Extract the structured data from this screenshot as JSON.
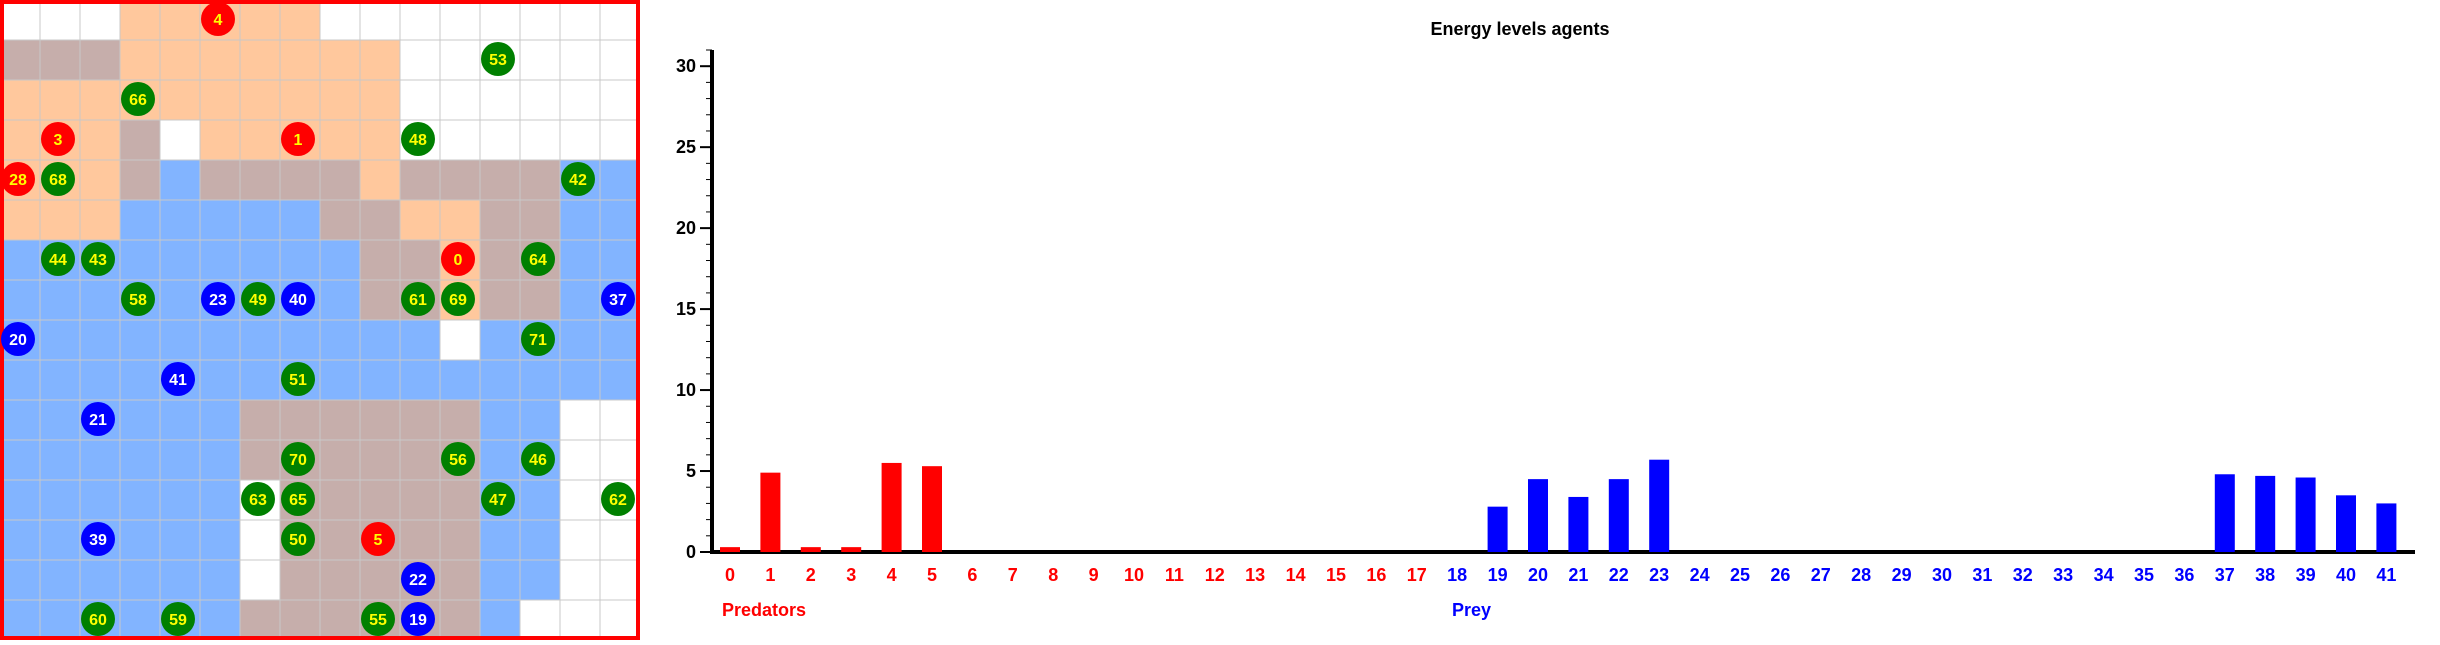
{
  "grid": {
    "cols": 16,
    "rows": 16,
    "orange": "#ff9a4d",
    "blue": "#4d94ff",
    "overlap": "#b89a96",
    "cell_colors": [
      "WWWOOOOOWWWWWWWW",
      "XXXOOOOOOOWWWWWW",
      "OOOOOOOOOOWWWWWW",
      "OOOXWOOOOOWWWWWW",
      "OOOXBXXXXOXXXXBB",
      "OOOBBBBBXXOOXXBB",
      "BBBBBBBBBXXOXXBB",
      "BBBBBBBBBXXOXXBB",
      "BBBBBBBBBBBWBBBB",
      "BBBBBBBBBBBBBBBB",
      "BBBBBBXXXXXXBBWW",
      "BBBBBBXXXXXXBBWW",
      "BBBBBBWXXXXXBBWW",
      "BBBBBBWXXXXXBBWW",
      "BBBBBBWXXXXXBBWW",
      "BBBBBBXXXXXXBWWW"
    ],
    "agents": [
      {
        "id": "4",
        "kind": "predator",
        "col": 5,
        "row": 0
      },
      {
        "id": "53",
        "kind": "grass",
        "col": 12,
        "row": 1
      },
      {
        "id": "66",
        "kind": "grass",
        "col": 3,
        "row": 2
      },
      {
        "id": "3",
        "kind": "predator",
        "col": 1,
        "row": 3
      },
      {
        "id": "1",
        "kind": "predator",
        "col": 7,
        "row": 3
      },
      {
        "id": "48",
        "kind": "grass",
        "col": 10,
        "row": 3
      },
      {
        "id": "28",
        "kind": "predator",
        "col": 0,
        "row": 4
      },
      {
        "id": "68",
        "kind": "grass",
        "col": 1,
        "row": 4
      },
      {
        "id": "42",
        "kind": "grass",
        "col": 14,
        "row": 4
      },
      {
        "id": "44",
        "kind": "grass",
        "col": 1,
        "row": 6
      },
      {
        "id": "43",
        "kind": "grass",
        "col": 2,
        "row": 6
      },
      {
        "id": "0",
        "kind": "predator",
        "col": 11,
        "row": 6
      },
      {
        "id": "64",
        "kind": "grass",
        "col": 13,
        "row": 6
      },
      {
        "id": "58",
        "kind": "grass",
        "col": 3,
        "row": 7
      },
      {
        "id": "23",
        "kind": "prey",
        "col": 5,
        "row": 7
      },
      {
        "id": "49",
        "kind": "grass",
        "col": 6,
        "row": 7
      },
      {
        "id": "40",
        "kind": "prey",
        "col": 7,
        "row": 7
      },
      {
        "id": "61",
        "kind": "grass",
        "col": 10,
        "row": 7
      },
      {
        "id": "69",
        "kind": "grass",
        "col": 11,
        "row": 7
      },
      {
        "id": "37",
        "kind": "prey",
        "col": 15,
        "row": 7
      },
      {
        "id": "20",
        "kind": "prey",
        "col": 0,
        "row": 8
      },
      {
        "id": "71",
        "kind": "grass",
        "col": 13,
        "row": 8
      },
      {
        "id": "41",
        "kind": "prey",
        "col": 4,
        "row": 9
      },
      {
        "id": "51",
        "kind": "grass",
        "col": 7,
        "row": 9
      },
      {
        "id": "21",
        "kind": "prey",
        "col": 2,
        "row": 10
      },
      {
        "id": "70",
        "kind": "grass",
        "col": 7,
        "row": 11
      },
      {
        "id": "56",
        "kind": "grass",
        "col": 11,
        "row": 11
      },
      {
        "id": "46",
        "kind": "grass",
        "col": 13,
        "row": 11
      },
      {
        "id": "63",
        "kind": "grass",
        "col": 6,
        "row": 12
      },
      {
        "id": "65",
        "kind": "grass",
        "col": 7,
        "row": 12
      },
      {
        "id": "47",
        "kind": "grass",
        "col": 12,
        "row": 12
      },
      {
        "id": "62",
        "kind": "grass",
        "col": 15,
        "row": 12
      },
      {
        "id": "39",
        "kind": "prey",
        "col": 2,
        "row": 13
      },
      {
        "id": "50",
        "kind": "grass",
        "col": 7,
        "row": 13
      },
      {
        "id": "5",
        "kind": "predator",
        "col": 9,
        "row": 13
      },
      {
        "id": "22",
        "kind": "prey",
        "col": 10,
        "row": 14
      },
      {
        "id": "60",
        "kind": "grass",
        "col": 2,
        "row": 15
      },
      {
        "id": "59",
        "kind": "grass",
        "col": 4,
        "row": 15
      },
      {
        "id": "55",
        "kind": "grass",
        "col": 9,
        "row": 15
      },
      {
        "id": "19",
        "kind": "prey",
        "col": 10,
        "row": 15
      }
    ]
  },
  "chart_data": {
    "type": "bar",
    "title": "Energy levels agents",
    "ylim": [
      0,
      31
    ],
    "yticks": [
      "0",
      "5",
      "10",
      "15",
      "20",
      "25",
      "30"
    ],
    "categories": [
      "0",
      "1",
      "2",
      "3",
      "4",
      "5",
      "6",
      "7",
      "8",
      "9",
      "10",
      "11",
      "12",
      "13",
      "14",
      "15",
      "16",
      "17",
      "18",
      "19",
      "20",
      "21",
      "22",
      "23",
      "24",
      "25",
      "26",
      "27",
      "28",
      "29",
      "30",
      "31",
      "32",
      "33",
      "34",
      "35",
      "36",
      "37",
      "38",
      "39",
      "40",
      "41"
    ],
    "values": [
      0.3,
      4.9,
      0.3,
      0.3,
      5.5,
      5.3,
      0,
      0,
      0,
      0,
      0,
      0,
      0,
      0,
      0,
      0,
      0,
      0,
      0,
      2.8,
      4.5,
      3.4,
      4.5,
      5.7,
      0,
      0,
      0,
      0,
      0,
      0,
      0,
      0,
      0,
      0,
      0,
      0,
      0,
      4.8,
      4.7,
      4.6,
      3.5,
      3.0
    ],
    "series": [
      {
        "name": "Predators",
        "from": 0,
        "to": 17,
        "color": "#ff0000"
      },
      {
        "name": "Prey",
        "from": 18,
        "to": 41,
        "color": "#0000ff"
      }
    ]
  }
}
